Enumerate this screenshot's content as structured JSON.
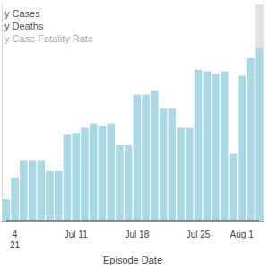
{
  "chart_data": {
    "type": "bar",
    "x_label": "Episode Date",
    "categories": [
      null,
      "4\n21",
      null,
      null,
      null,
      null,
      null,
      null,
      "Jul 11",
      null,
      null,
      null,
      null,
      null,
      null,
      "Jul 18",
      null,
      null,
      null,
      null,
      null,
      null,
      "Jul 25",
      null,
      null,
      null,
      null,
      "Aug 1",
      null,
      null
    ],
    "series": [
      {
        "name": "y Cases",
        "type": "bar",
        "color": "#a9d9e6",
        "values": [
          26,
          51,
          71,
          71,
          71,
          58,
          58,
          100,
          102,
          108,
          113,
          110,
          113,
          88,
          88,
          146,
          146,
          151,
          130,
          130,
          108,
          108,
          175,
          173,
          170,
          173,
          78,
          168,
          188,
          200
        ]
      },
      {
        "name": "y Deaths",
        "type": "line",
        "color": "#333333",
        "values": [
          1,
          1,
          1,
          1,
          1,
          1,
          1,
          1,
          1,
          1,
          1,
          1,
          1,
          1,
          1,
          1,
          1,
          1,
          1,
          1,
          1,
          1,
          1,
          1,
          1,
          1,
          1,
          1,
          1,
          1
        ]
      },
      {
        "name": "y Case Fatality Rate",
        "type": "line",
        "color": "#bbbbbb",
        "values": [
          null,
          null,
          null,
          null,
          null,
          null,
          null,
          null,
          null,
          null,
          null,
          null,
          null,
          null,
          null,
          null,
          null,
          null,
          null,
          null,
          null,
          null,
          null,
          null,
          null,
          null,
          null,
          null,
          null,
          null
        ]
      }
    ],
    "ylim": [
      0,
      250
    ],
    "grid": false,
    "legend": "top-left",
    "tick_labels": "x"
  }
}
